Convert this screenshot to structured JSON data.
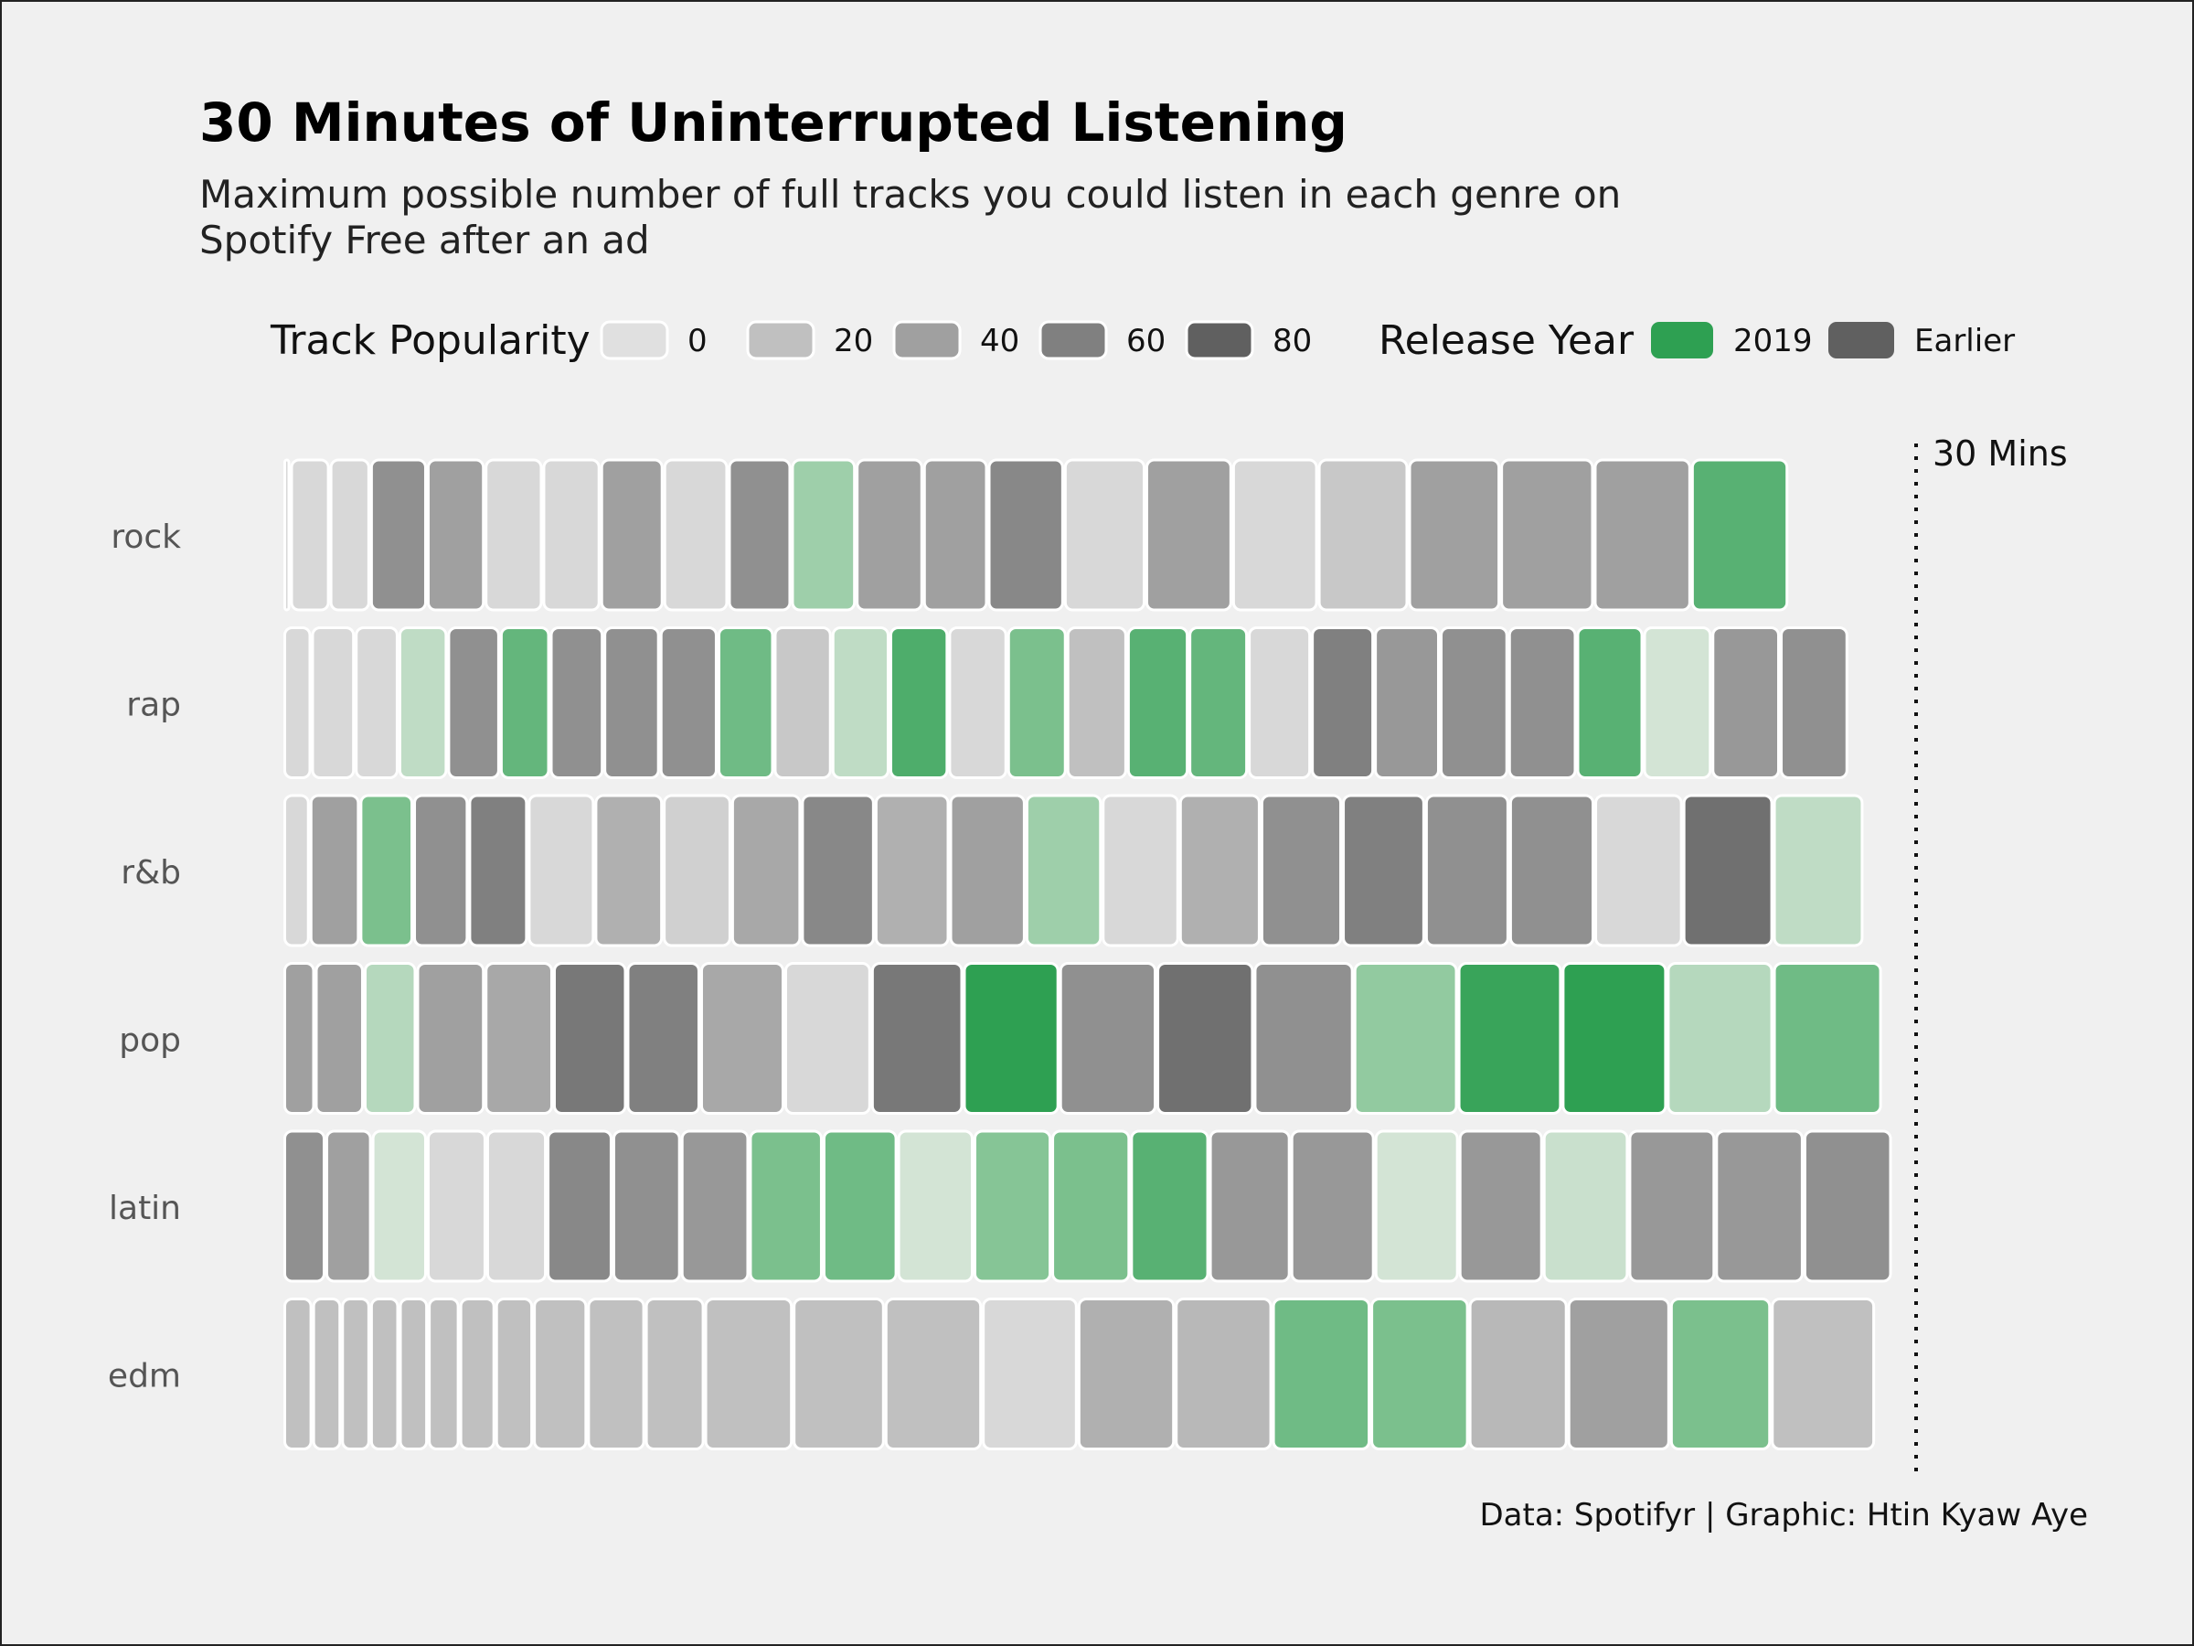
{
  "title": "30 Minutes of Uninterrupted Listening",
  "subtitle": "Maximum possible number of full tracks you could listen in each genre on Spotify Free after an ad",
  "caption": "Data: Spotifyr | Graphic: Htin Kyaw Aye",
  "legend": {
    "popularity_title": "Track Popularity",
    "popularity_levels": [
      "0",
      "20",
      "40",
      "60",
      "80"
    ],
    "popularity_values": [
      0,
      20,
      40,
      60,
      80
    ],
    "year_title": "Release Year",
    "year_items": [
      "2019",
      "Earlier"
    ]
  },
  "colors": {
    "background": "#f0f0f0",
    "earlier_scale": [
      "#e0e0e0",
      "#c0c0c0",
      "#a0a0a0",
      "#808080",
      "#606060"
    ],
    "year2019_scale": [
      "#dde8dd",
      "#b5d8bd",
      "#86c596",
      "#58b173",
      "#2ea052"
    ],
    "legend_2019": "#2ea052",
    "legend_earlier": "#606060"
  },
  "chart_data": {
    "type": "bar",
    "orientation": "horizontal",
    "stacked": true,
    "x_unit": "minutes",
    "xlim": [
      0,
      30
    ],
    "reference_line": {
      "value": 30,
      "label": "30 Mins"
    },
    "categories": [
      "rock",
      "rap",
      "r&b",
      "pop",
      "latin",
      "edm"
    ],
    "genres": [
      {
        "name": "rock",
        "durations": [
          0.13,
          0.75,
          0.77,
          1.08,
          1.1,
          1.1,
          1.1,
          1.2,
          1.23,
          1.2,
          1.23,
          1.28,
          1.23,
          1.45,
          1.55,
          1.65,
          1.63,
          1.72,
          1.75,
          1.78,
          1.85,
          1.85
        ],
        "popularity": [
          5,
          5,
          5,
          50,
          40,
          5,
          5,
          40,
          5,
          50,
          null,
          40,
          40,
          55,
          5,
          40,
          5,
          15,
          40,
          40,
          40,
          null
        ],
        "release_2019": [
          false,
          false,
          false,
          false,
          false,
          false,
          false,
          false,
          false,
          false,
          true,
          false,
          false,
          false,
          false,
          false,
          false,
          false,
          false,
          false,
          false,
          true
        ],
        "green_level": [
          null,
          null,
          null,
          null,
          null,
          null,
          null,
          null,
          null,
          null,
          30,
          null,
          null,
          null,
          null,
          null,
          null,
          null,
          null,
          null,
          null,
          60
        ]
      },
      {
        "name": "rap",
        "durations": [
          0.53,
          0.83,
          0.83,
          0.93,
          1.0,
          0.95,
          1.02,
          1.07,
          1.1,
          1.07,
          1.1,
          1.1,
          1.12,
          1.12,
          1.13,
          1.15,
          1.17,
          1.13,
          1.2,
          1.2,
          1.25,
          1.3,
          1.3,
          1.27,
          1.3,
          1.3,
          1.3
        ],
        "popularity": [
          5,
          5,
          5,
          null,
          50,
          null,
          50,
          50,
          50,
          null,
          15,
          null,
          null,
          5,
          null,
          20,
          null,
          null,
          5,
          60,
          45,
          50,
          50,
          null,
          null,
          45,
          50
        ],
        "release_2019": [
          false,
          false,
          false,
          true,
          false,
          true,
          false,
          false,
          false,
          true,
          false,
          true,
          true,
          false,
          true,
          false,
          true,
          true,
          false,
          false,
          false,
          false,
          false,
          true,
          true,
          false,
          false
        ],
        "green_level": [
          null,
          null,
          null,
          15,
          null,
          55,
          null,
          null,
          null,
          50,
          null,
          15,
          65,
          null,
          45,
          null,
          60,
          55,
          null,
          null,
          null,
          null,
          null,
          60,
          5,
          null,
          null
        ]
      },
      {
        "name": "r&b",
        "durations": [
          0.5,
          0.95,
          1.02,
          1.05,
          1.13,
          1.27,
          1.3,
          1.3,
          1.33,
          1.4,
          1.42,
          1.45,
          1.45,
          1.47,
          1.55,
          1.55,
          1.58,
          1.6,
          1.62,
          1.68,
          1.72,
          1.72
        ],
        "popularity": [
          5,
          40,
          null,
          50,
          60,
          5,
          30,
          10,
          35,
          55,
          30,
          40,
          null,
          5,
          30,
          50,
          60,
          50,
          50,
          5,
          70,
          null
        ],
        "release_2019": [
          false,
          false,
          true,
          false,
          false,
          false,
          false,
          false,
          false,
          false,
          false,
          false,
          true,
          false,
          false,
          false,
          false,
          false,
          false,
          false,
          false,
          true
        ],
        "green_level": [
          null,
          null,
          45,
          null,
          null,
          null,
          null,
          null,
          null,
          null,
          null,
          null,
          30,
          null,
          null,
          null,
          null,
          null,
          null,
          null,
          null,
          15
        ]
      },
      {
        "name": "pop",
        "durations": [
          0.6,
          0.93,
          1.0,
          1.3,
          1.3,
          1.4,
          1.4,
          1.6,
          1.65,
          1.75,
          1.83,
          1.85,
          1.85,
          1.9,
          1.98,
          1.98,
          2.0,
          2.02,
          2.07
        ],
        "popularity": [
          40,
          40,
          null,
          40,
          35,
          65,
          60,
          35,
          5,
          65,
          null,
          50,
          70,
          50,
          null,
          null,
          null,
          null,
          null
        ],
        "release_2019": [
          false,
          false,
          true,
          false,
          false,
          false,
          false,
          false,
          false,
          false,
          true,
          false,
          false,
          false,
          true,
          true,
          true,
          true,
          true
        ],
        "green_level": [
          null,
          null,
          20,
          null,
          null,
          null,
          null,
          null,
          null,
          null,
          80,
          null,
          null,
          null,
          35,
          75,
          80,
          20,
          50
        ]
      },
      {
        "name": "latin",
        "durations": [
          0.8,
          0.88,
          1.05,
          1.13,
          1.15,
          1.25,
          1.3,
          1.3,
          1.4,
          1.42,
          1.45,
          1.48,
          1.5,
          1.5,
          1.55,
          1.6,
          1.6,
          1.6,
          1.63,
          1.65,
          1.68,
          1.68
        ],
        "popularity": [
          50,
          40,
          null,
          5,
          5,
          55,
          50,
          45,
          null,
          null,
          null,
          null,
          null,
          null,
          45,
          45,
          null,
          45,
          null,
          45,
          45,
          50
        ],
        "release_2019": [
          false,
          false,
          true,
          false,
          false,
          false,
          false,
          false,
          true,
          true,
          true,
          true,
          true,
          true,
          false,
          false,
          true,
          false,
          true,
          false,
          false,
          false
        ],
        "green_level": [
          null,
          null,
          5,
          null,
          null,
          null,
          null,
          null,
          45,
          50,
          5,
          40,
          45,
          60,
          null,
          null,
          5,
          null,
          10,
          null,
          null,
          null
        ]
      },
      {
        "name": "edm",
        "durations": [
          0.55,
          0.55,
          0.55,
          0.55,
          0.55,
          0.6,
          0.68,
          0.72,
          1.03,
          1.1,
          1.13,
          1.68,
          1.75,
          1.85,
          1.82,
          1.85,
          1.85,
          1.87,
          1.87,
          1.88,
          1.95,
          1.92,
          1.98
        ],
        "popularity": [
          20,
          20,
          20,
          20,
          20,
          20,
          20,
          20,
          20,
          20,
          20,
          20,
          20,
          20,
          5,
          30,
          25,
          null,
          null,
          25,
          40,
          null,
          20
        ],
        "release_2019": [
          false,
          false,
          false,
          false,
          false,
          false,
          false,
          false,
          false,
          false,
          false,
          false,
          false,
          false,
          false,
          false,
          false,
          true,
          true,
          false,
          false,
          true,
          false
        ],
        "green_level": [
          null,
          null,
          null,
          null,
          null,
          null,
          null,
          null,
          null,
          null,
          null,
          null,
          null,
          null,
          null,
          null,
          null,
          50,
          45,
          null,
          null,
          45,
          null
        ]
      }
    ]
  }
}
